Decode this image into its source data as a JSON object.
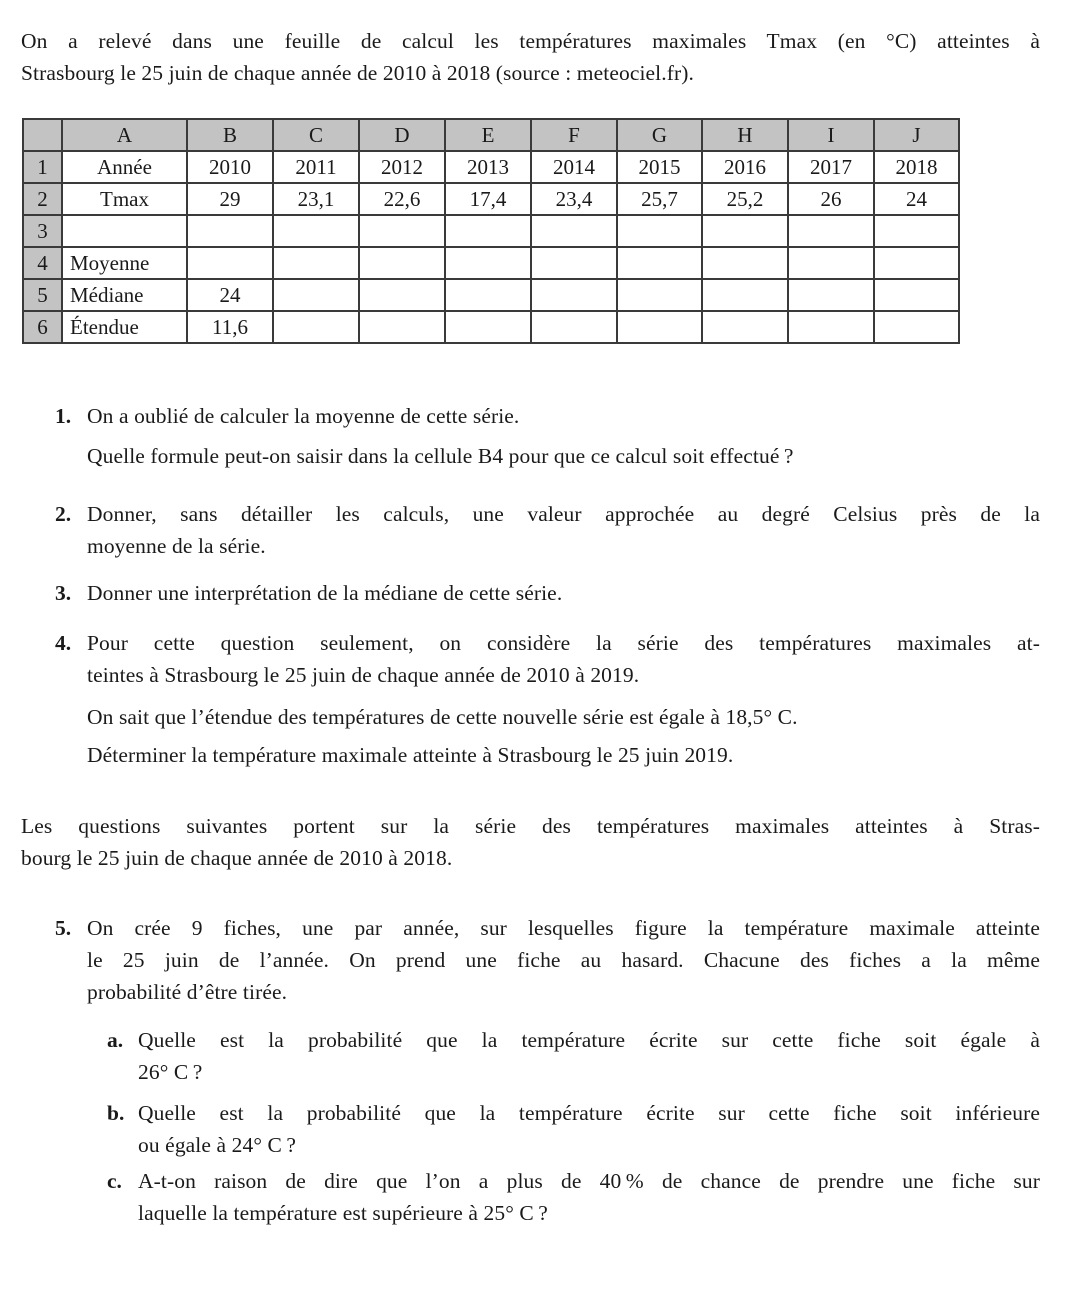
{
  "colors": {
    "header_gray": "#c3c3c3",
    "border": "#3a3a3a",
    "text": "#1a1a1a",
    "background": "#ffffff"
  },
  "intro": {
    "lines": [
      "On a relevé dans une feuille de calcul les températures maximales Tmax (en °C) atteintes à",
      "Strasbourg le 25 juin de chaque année de 2010 à 2018 (source : meteociel.fr)."
    ]
  },
  "table": {
    "corner": "",
    "col_headers": [
      "A",
      "B",
      "C",
      "D",
      "E",
      "F",
      "G",
      "H",
      "I",
      "J"
    ],
    "rows": [
      {
        "num": "1",
        "label": "Année",
        "label_align": "center",
        "values": [
          "2010",
          "2011",
          "2012",
          "2013",
          "2014",
          "2015",
          "2016",
          "2017",
          "2018"
        ]
      },
      {
        "num": "2",
        "label": "Tmax",
        "label_align": "center",
        "values": [
          "29",
          "23,1",
          "22,6",
          "17,4",
          "23,4",
          "25,7",
          "25,2",
          "26",
          "24"
        ]
      },
      {
        "num": "3",
        "label": "",
        "label_align": "left",
        "values": [
          "",
          "",
          "",
          "",
          "",
          "",
          "",
          "",
          ""
        ]
      },
      {
        "num": "4",
        "label": "Moyenne",
        "label_align": "left",
        "values": [
          "",
          "",
          "",
          "",
          "",
          "",
          "",
          "",
          ""
        ]
      },
      {
        "num": "5",
        "label": "Médiane",
        "label_align": "left",
        "values": [
          "24",
          "",
          "",
          "",
          "",
          "",
          "",
          "",
          ""
        ]
      },
      {
        "num": "6",
        "label": "Étendue",
        "label_align": "left",
        "values": [
          "11,6",
          "",
          "",
          "",
          "",
          "",
          "",
          "",
          ""
        ]
      }
    ]
  },
  "questions": {
    "q1": {
      "num": "1.",
      "p1": {
        "lines": [
          "On a oublié de calculer la moyenne de cette série."
        ]
      },
      "p2": {
        "lines": [
          "Quelle formule peut-on saisir dans la cellule B4 pour que ce calcul soit effectué ?"
        ]
      }
    },
    "q2": {
      "num": "2.",
      "p1": {
        "lines": [
          "Donner, sans détailler les calculs, une valeur approchée au degré Celsius près de la",
          "moyenne de la série."
        ]
      }
    },
    "q3": {
      "num": "3.",
      "p1": {
        "lines": [
          "Donner une interprétation de la médiane de cette série."
        ]
      }
    },
    "q4": {
      "num": "4.",
      "p1": {
        "lines": [
          "Pour cette question seulement, on considère la série des températures maximales at-",
          "teintes à Strasbourg le 25 juin de chaque année de 2010 à 2019."
        ]
      },
      "p2": {
        "lines": [
          "On sait que l’étendue des températures de cette nouvelle série est égale à 18,5° C."
        ]
      },
      "p3": {
        "lines": [
          "Déterminer la température maximale atteinte à Strasbourg le 25 juin 2019."
        ]
      }
    },
    "mid_paragraph": {
      "lines": [
        "Les questions suivantes portent sur la série des températures maximales atteintes à Stras-",
        "bourg le 25 juin de chaque année de 2010 à 2018."
      ]
    },
    "q5": {
      "num": "5.",
      "p1": {
        "lines": [
          "On crée 9 fiches, une par année, sur lesquelles figure la température maximale atteinte",
          "le 25 juin de l’année. On prend une fiche au hasard. Chacune des fiches a la même",
          "probabilité d’être tirée."
        ]
      },
      "a": {
        "num": "a.",
        "p": {
          "lines": [
            "Quelle est la probabilité que la température écrite sur cette fiche soit égale à",
            "26° C ?"
          ]
        }
      },
      "b": {
        "num": "b.",
        "p": {
          "lines": [
            "Quelle est la probabilité que la température écrite sur cette fiche soit inférieure",
            "ou égale à 24° C ?"
          ]
        }
      },
      "c": {
        "num": "c.",
        "p": {
          "lines": [
            "A-t-on raison de dire que l’on a plus de 40 % de chance de prendre une fiche sur",
            "laquelle la température est supérieure à 25° C ?"
          ]
        }
      }
    }
  }
}
